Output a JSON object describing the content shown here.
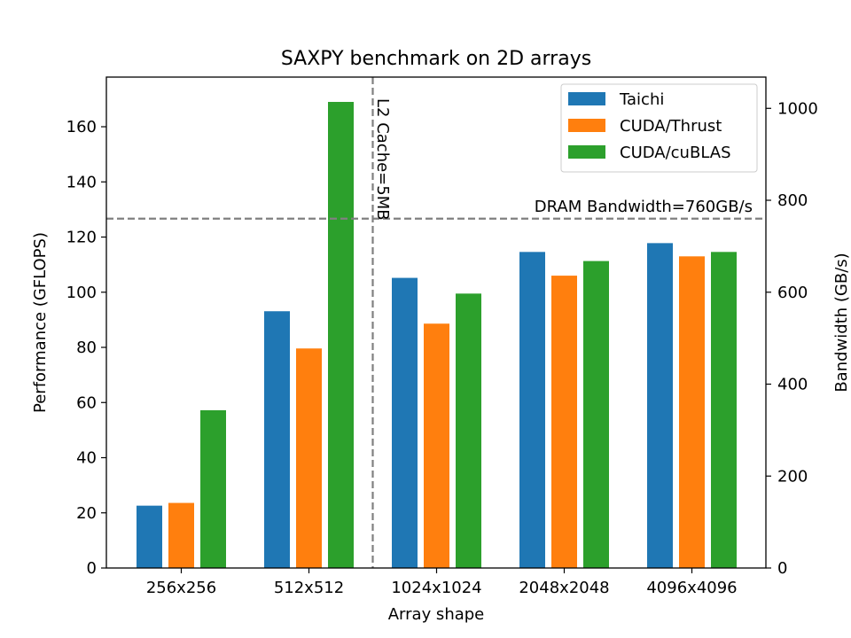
{
  "chart_data": {
    "type": "bar",
    "title": "SAXPY benchmark on 2D arrays",
    "xlabel": "Array shape",
    "ylabel": "Performance (GFLOPS)",
    "ylabel_right": "Bandwidth (GB/s)",
    "categories": [
      "256x256",
      "512x512",
      "1024x1024",
      "2048x2048",
      "4096x4096"
    ],
    "series": [
      {
        "name": "Taichi",
        "color": "#1f77b4",
        "values": [
          22.6,
          93.1,
          105.2,
          114.6,
          117.8
        ]
      },
      {
        "name": "CUDA/Thrust",
        "color": "#ff7f0e",
        "values": [
          23.6,
          79.6,
          88.6,
          106.0,
          113.0
        ]
      },
      {
        "name": "CUDA/cuBLAS",
        "color": "#2ca02c",
        "values": [
          57.2,
          169.0,
          99.5,
          111.3,
          114.6
        ]
      }
    ],
    "ylim": [
      0,
      178
    ],
    "yticks": [
      0,
      20,
      40,
      60,
      80,
      100,
      120,
      140,
      160
    ],
    "y2lim": [
      0,
      1068
    ],
    "y2ticks": [
      0,
      200,
      400,
      600,
      800,
      1000
    ],
    "legend_position": "top-right",
    "annotations": {
      "dram": {
        "label": "DRAM Bandwidth=760GB/s",
        "y2_value": 760
      },
      "l2": {
        "label": "L2 Cache=5MB",
        "x_position": "between 512x512 and 1024x1024"
      }
    },
    "reference_line_color": "#808080",
    "grid": false
  }
}
